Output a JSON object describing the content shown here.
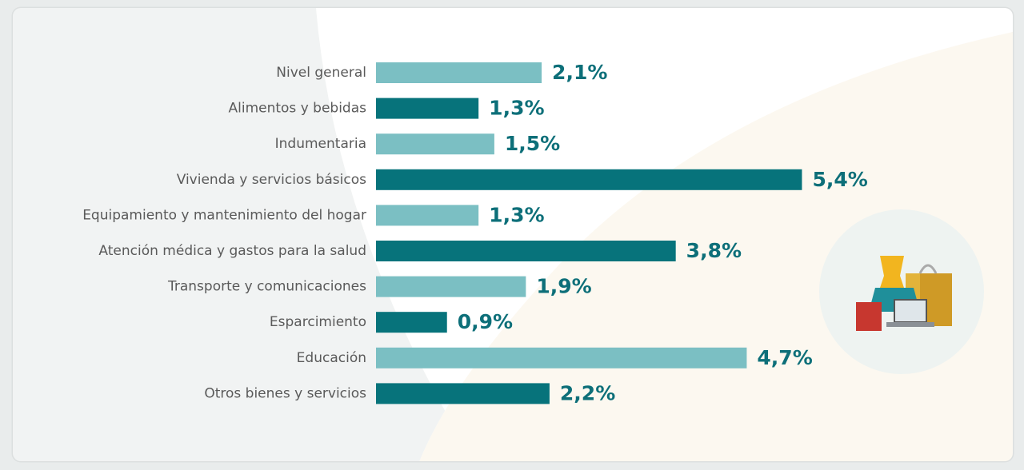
{
  "chart_data": {
    "type": "bar",
    "orientation": "horizontal",
    "categories": [
      "Nivel general",
      "Alimentos y bebidas",
      "Indumentaria",
      "Vivienda y servicios básicos",
      "Equipamiento y mantenimiento del hogar",
      "Atención médica y gastos para la salud",
      "Transporte y comunicaciones",
      "Esparcimiento",
      "Educación",
      "Otros bienes y servicios"
    ],
    "values": [
      2.1,
      1.3,
      1.5,
      5.4,
      1.3,
      3.8,
      1.9,
      0.9,
      4.7,
      2.2
    ],
    "value_labels": [
      "2,1%",
      "1,3%",
      "1,5%",
      "5,4%",
      "1,3%",
      "3,8%",
      "1,9%",
      "0,9%",
      "4,7%",
      "2,2%"
    ],
    "colors": [
      "#7bbfc3",
      "#07737b",
      "#7bbfc3",
      "#07737b",
      "#7bbfc3",
      "#07737b",
      "#7bbfc3",
      "#07737b",
      "#7bbfc3",
      "#07737b"
    ]
  }
}
